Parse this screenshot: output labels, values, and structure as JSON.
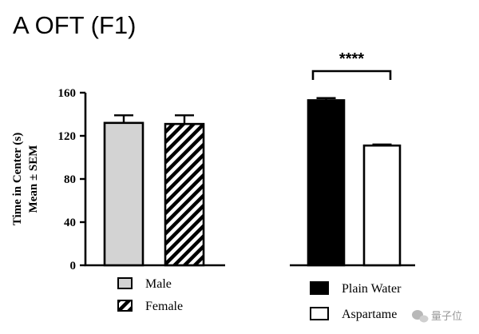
{
  "chart_data": [
    {
      "type": "bar",
      "title": "A OFT (F1)",
      "ylabel_lines": [
        "Time in Center (s)",
        "Mean ± SEM"
      ],
      "ylim": [
        0,
        160
      ],
      "yticks": [
        "0",
        "40",
        "80",
        "120",
        "160"
      ],
      "categories": [
        "Male",
        "Female"
      ],
      "values": [
        132,
        131
      ],
      "errors": [
        7,
        8
      ],
      "legend": [
        {
          "label": "Male",
          "fill": "gray"
        },
        {
          "label": "Female",
          "fill": "hatched"
        }
      ],
      "colors": {
        "male": "#d3d3d3",
        "hatch": "#000000"
      }
    },
    {
      "type": "bar",
      "ylim": [
        0,
        160
      ],
      "categories": [
        "Plain Water",
        "Aspartame"
      ],
      "values": [
        153,
        111
      ],
      "errors": [
        2,
        1
      ],
      "significance": "****",
      "legend": [
        {
          "label": "Plain Water",
          "fill": "black"
        },
        {
          "label": "Aspartame",
          "fill": "white"
        }
      ],
      "colors": {
        "plain_water": "#000000",
        "aspartame": "#ffffff"
      }
    }
  ],
  "watermark": {
    "text": "量子位",
    "icon": "wechat-icon"
  }
}
